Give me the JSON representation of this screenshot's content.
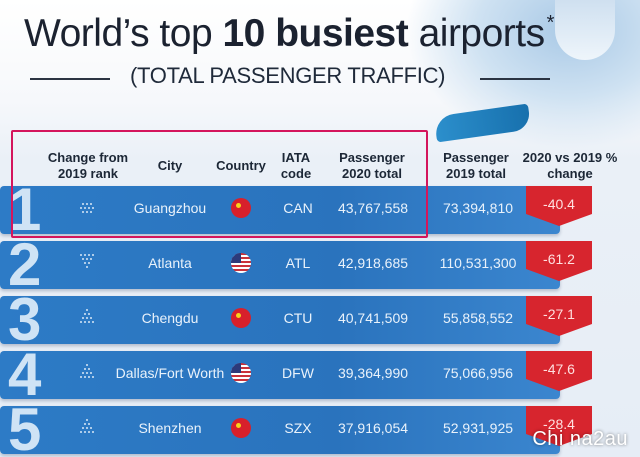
{
  "header": {
    "title_pre": "World’s top ",
    "title_bold": "10 busiest",
    "title_post": " airports",
    "title_star": "*",
    "subtitle": "(TOTAL PASSENGER TRAFFIC)"
  },
  "columns": {
    "change": "Change from 2019 rank",
    "city": "City",
    "country": "Country",
    "iata": "IATA code",
    "p2020": "Passenger 2020 total",
    "p2019": "Passenger 2019 total",
    "pct": "2020 vs 2019 % change"
  },
  "rows": [
    {
      "rank": "1",
      "change_icon": "same-rank-icon",
      "city": "Guangzhou",
      "country": "cn-flag-icon",
      "iata": "CAN",
      "p2020": "43,767,558",
      "p2019": "73,394,810",
      "pct": "-40.4"
    },
    {
      "rank": "2",
      "change_icon": "down-rank-icon",
      "city": "Atlanta",
      "country": "us-flag-icon",
      "iata": "ATL",
      "p2020": "42,918,685",
      "p2019": "110,531,300",
      "pct": "-61.2"
    },
    {
      "rank": "3",
      "change_icon": "up-rank-icon",
      "city": "Chengdu",
      "country": "cn-flag-icon",
      "iata": "CTU",
      "p2020": "40,741,509",
      "p2019": "55,858,552",
      "pct": "-27.1"
    },
    {
      "rank": "4",
      "change_icon": "up-rank-icon",
      "city": "Dallas/Fort Worth",
      "country": "us-flag-icon",
      "iata": "DFW",
      "p2020": "39,364,990",
      "p2019": "75,066,956",
      "pct": "-47.6"
    },
    {
      "rank": "5",
      "change_icon": "up-rank-icon",
      "city": "Shenzhen",
      "country": "cn-flag-icon",
      "iata": "SZX",
      "p2020": "37,916,054",
      "p2019": "52,931,925",
      "pct": "-28.4"
    }
  ],
  "watermark": "Chi na2au",
  "colors": {
    "band": "#2a73bd",
    "pct_badge": "#d7252e",
    "highlight": "#d4155c"
  }
}
